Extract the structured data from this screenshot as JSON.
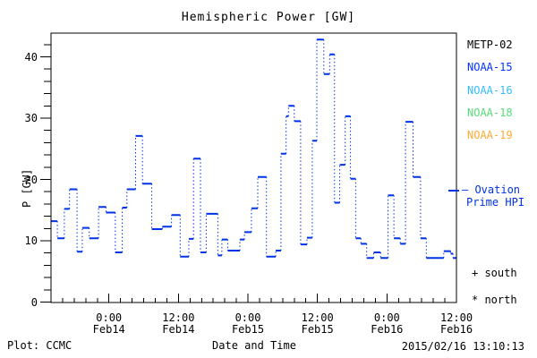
{
  "title": "Hemispheric Power [GW]",
  "footer": {
    "credit": "Plot: CCMC",
    "timestamp": "2015/02/16 13:10:13"
  },
  "legend": {
    "satellites": [
      {
        "label": "METP-02",
        "color": "#000000"
      },
      {
        "label": "NOAA-15",
        "color": "#0033ff"
      },
      {
        "label": "NOAA-16",
        "color": "#33bbff"
      },
      {
        "label": "NOAA-18",
        "color": "#55dd77"
      },
      {
        "label": "NOAA-19",
        "color": "#ffaa33"
      }
    ],
    "model_line1": "— Ovation",
    "model_line2": "Prime HPI",
    "model_color": "#0033e6",
    "south_marker": "+ south",
    "north_marker": "* north"
  },
  "chart_data": {
    "type": "line",
    "subtype": "step-plot-dotted-risers",
    "title": "Hemispheric Power [GW]",
    "xlabel": "Date and Time",
    "ylabel": "P [GW]",
    "ylim": [
      0,
      43.9
    ],
    "grid": false,
    "x_start": "Feb13 14:00",
    "x_end": "Feb16 12:00",
    "x_range_hours": 70,
    "x_minor_step_hours": 2,
    "y_major_ticks": [
      0,
      10,
      20,
      30,
      40
    ],
    "y_minor_step": 2,
    "x_major_ticks": [
      {
        "h": 10,
        "time": "0:00",
        "date": "Feb14"
      },
      {
        "h": 22,
        "time": "12:00",
        "date": "Feb14"
      },
      {
        "h": 34,
        "time": "0:00",
        "date": "Feb15"
      },
      {
        "h": 46,
        "time": "12:00",
        "date": "Feb15"
      },
      {
        "h": 58,
        "time": "0:00",
        "date": "Feb16"
      },
      {
        "h": 70,
        "time": "12:00",
        "date": "Feb16"
      }
    ],
    "series": [
      {
        "name": "Ovation Prime HPI",
        "color": "#0033e6",
        "points_hours_gw": [
          [
            0,
            13.2
          ],
          [
            1.1,
            10.4
          ],
          [
            2.3,
            15.2
          ],
          [
            3.2,
            18.4
          ],
          [
            4.5,
            8.2
          ],
          [
            5.4,
            12.1
          ],
          [
            6.6,
            10.4
          ],
          [
            8.2,
            15.5
          ],
          [
            9.5,
            14.6
          ],
          [
            11.1,
            8.1
          ],
          [
            12.3,
            15.4
          ],
          [
            13.1,
            18.4
          ],
          [
            14.6,
            27.1
          ],
          [
            15.8,
            19.3
          ],
          [
            17.4,
            11.9
          ],
          [
            19.2,
            12.3
          ],
          [
            20.8,
            14.2
          ],
          [
            22.3,
            7.4
          ],
          [
            23.8,
            10.3
          ],
          [
            24.6,
            23.4
          ],
          [
            25.8,
            8.1
          ],
          [
            26.8,
            14.4
          ],
          [
            28.8,
            7.6
          ],
          [
            29.5,
            10.2
          ],
          [
            30.5,
            8.4
          ],
          [
            32.6,
            10.2
          ],
          [
            33.4,
            11.4
          ],
          [
            34.6,
            15.3
          ],
          [
            35.7,
            20.4
          ],
          [
            37.2,
            7.4
          ],
          [
            38.8,
            8.4
          ],
          [
            39.7,
            24.2
          ],
          [
            40.6,
            30.3
          ],
          [
            41.0,
            32.0
          ],
          [
            42.0,
            29.5
          ],
          [
            43.1,
            9.4
          ],
          [
            44.2,
            10.5
          ],
          [
            45.1,
            26.3
          ],
          [
            45.9,
            42.8
          ],
          [
            47.1,
            37.2
          ],
          [
            48.1,
            40.4
          ],
          [
            48.95,
            16.2
          ],
          [
            49.85,
            22.4
          ],
          [
            50.8,
            30.3
          ],
          [
            51.7,
            20.1
          ],
          [
            52.6,
            10.4
          ],
          [
            53.5,
            9.5
          ],
          [
            54.5,
            7.2
          ],
          [
            55.7,
            8.1
          ],
          [
            56.9,
            7.2
          ],
          [
            58.2,
            17.4
          ],
          [
            59.2,
            10.4
          ],
          [
            60.3,
            9.5
          ],
          [
            61.2,
            29.4
          ],
          [
            62.5,
            20.4
          ],
          [
            63.8,
            10.4
          ],
          [
            64.8,
            7.2
          ],
          [
            67.8,
            8.3
          ],
          [
            69.0,
            7.9
          ],
          [
            69.4,
            7.2
          ]
        ]
      }
    ]
  }
}
